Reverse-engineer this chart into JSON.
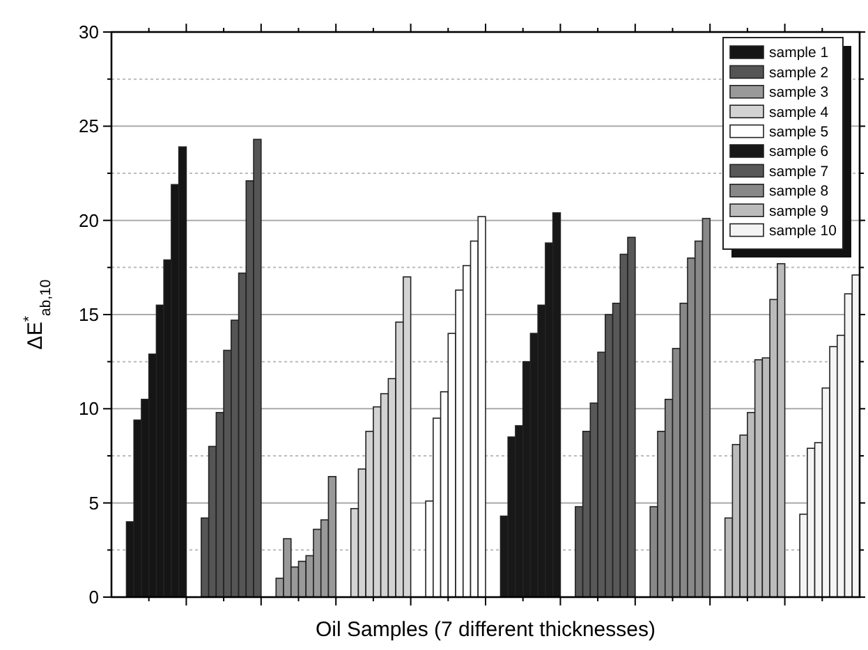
{
  "chart_data": {
    "type": "bar",
    "xlabel": "Oil Samples (7 different thicknesses)",
    "ylabel": "ΔE$^{*}$$_{ab,10}$",
    "categories": [
      null,
      null,
      null,
      null,
      null,
      null,
      null,
      null,
      null,
      null,
      null,
      null,
      null,
      null,
      null,
      null,
      null,
      null,
      null,
      null,
      null,
      null,
      null,
      null,
      null,
      null,
      null,
      null,
      null,
      null,
      null,
      null,
      null,
      null,
      null,
      null,
      null,
      null,
      null,
      null,
      null,
      null,
      null,
      null,
      null,
      null,
      null,
      null,
      null,
      null,
      null,
      null,
      null,
      null,
      null,
      null,
      null,
      null,
      null,
      null,
      null,
      null,
      null,
      null,
      null,
      null,
      null,
      null,
      null,
      null,
      null,
      null,
      null,
      null,
      null,
      null,
      null,
      null,
      null,
      null,
      null,
      null,
      null,
      null,
      null,
      null,
      null,
      null,
      null,
      null,
      null,
      null,
      null,
      null,
      null,
      null,
      null,
      null,
      null,
      null
    ],
    "series": [
      {
        "name": "sample 1",
        "color": "#151515",
        "values": [
          null,
          null,
          4.0,
          9.4,
          10.5,
          12.9,
          15.5,
          17.9,
          21.9,
          23.9,
          null,
          null,
          null,
          null,
          null,
          null,
          null,
          null,
          null,
          null,
          null,
          null,
          null,
          null,
          null,
          null,
          null,
          null,
          null,
          null,
          null,
          null,
          null,
          null,
          null,
          null,
          null,
          null,
          null,
          null,
          null,
          null,
          null,
          null,
          null,
          null,
          null,
          null,
          null,
          null,
          null,
          null,
          null,
          null,
          null,
          null,
          null,
          null,
          null,
          null,
          null,
          null,
          null,
          null,
          null,
          null,
          null,
          null,
          null,
          null,
          null,
          null,
          null,
          null,
          null,
          null,
          null,
          null,
          null,
          null,
          null,
          null,
          null,
          null,
          null,
          null,
          null,
          null,
          null,
          null,
          null,
          null,
          null,
          null,
          null,
          null,
          null,
          null,
          null,
          null
        ]
      },
      {
        "name": "sample 2",
        "color": "#555555",
        "values": [
          null,
          null,
          null,
          null,
          null,
          null,
          null,
          null,
          null,
          null,
          null,
          null,
          4.2,
          8.0,
          9.8,
          13.1,
          14.7,
          17.2,
          22.1,
          24.3,
          null,
          null,
          null,
          null,
          null,
          null,
          null,
          null,
          null,
          null,
          null,
          null,
          null,
          null,
          null,
          null,
          null,
          null,
          null,
          null,
          null,
          null,
          null,
          null,
          null,
          null,
          null,
          null,
          null,
          null,
          null,
          null,
          null,
          null,
          null,
          null,
          null,
          null,
          null,
          null,
          null,
          null,
          null,
          null,
          null,
          null,
          null,
          null,
          null,
          null,
          null,
          null,
          null,
          null,
          null,
          null,
          null,
          null,
          null,
          null,
          null,
          null,
          null,
          null,
          null,
          null,
          null,
          null,
          null,
          null,
          null,
          null,
          null,
          null,
          null,
          null,
          null,
          null,
          null,
          null
        ]
      },
      {
        "name": "sample 3",
        "color": "#999999",
        "values": [
          null,
          null,
          null,
          null,
          null,
          null,
          null,
          null,
          null,
          null,
          null,
          null,
          null,
          null,
          null,
          null,
          null,
          null,
          null,
          null,
          null,
          null,
          1.0,
          3.1,
          1.6,
          1.9,
          2.2,
          3.6,
          4.1,
          6.4,
          null,
          null,
          null,
          null,
          null,
          null,
          null,
          null,
          null,
          null,
          null,
          null,
          null,
          null,
          null,
          null,
          null,
          null,
          null,
          null,
          null,
          null,
          null,
          null,
          null,
          null,
          null,
          null,
          null,
          null,
          null,
          null,
          null,
          null,
          null,
          null,
          null,
          null,
          null,
          null,
          null,
          null,
          null,
          null,
          null,
          null,
          null,
          null,
          null,
          null,
          null,
          null,
          null,
          null,
          null,
          null,
          null,
          null,
          null,
          null,
          null,
          null,
          null,
          null,
          null,
          null,
          null,
          null,
          null,
          null
        ]
      },
      {
        "name": "sample 4",
        "color": "#d3d3d3",
        "values": [
          null,
          null,
          null,
          null,
          null,
          null,
          null,
          null,
          null,
          null,
          null,
          null,
          null,
          null,
          null,
          null,
          null,
          null,
          null,
          null,
          null,
          null,
          null,
          null,
          null,
          null,
          null,
          null,
          null,
          null,
          null,
          null,
          4.7,
          6.8,
          8.8,
          10.1,
          10.8,
          11.6,
          14.6,
          17.0,
          null,
          null,
          null,
          null,
          null,
          null,
          null,
          null,
          null,
          null,
          null,
          null,
          null,
          null,
          null,
          null,
          null,
          null,
          null,
          null,
          null,
          null,
          null,
          null,
          null,
          null,
          null,
          null,
          null,
          null,
          null,
          null,
          null,
          null,
          null,
          null,
          null,
          null,
          null,
          null,
          null,
          null,
          null,
          null,
          null,
          null,
          null,
          null,
          null,
          null,
          null,
          null,
          null,
          null,
          null,
          null,
          null,
          null,
          null,
          null
        ]
      },
      {
        "name": "sample 5",
        "color": "#ffffff",
        "values": [
          null,
          null,
          null,
          null,
          null,
          null,
          null,
          null,
          null,
          null,
          null,
          null,
          null,
          null,
          null,
          null,
          null,
          null,
          null,
          null,
          null,
          null,
          null,
          null,
          null,
          null,
          null,
          null,
          null,
          null,
          null,
          null,
          null,
          null,
          null,
          null,
          null,
          null,
          null,
          null,
          null,
          null,
          5.1,
          9.5,
          10.9,
          14.0,
          16.3,
          17.6,
          18.9,
          20.2,
          null,
          null,
          null,
          null,
          null,
          null,
          null,
          null,
          null,
          null,
          null,
          null,
          null,
          null,
          null,
          null,
          null,
          null,
          null,
          null,
          null,
          null,
          null,
          null,
          null,
          null,
          null,
          null,
          null,
          null,
          null,
          null,
          null,
          null,
          null,
          null,
          null,
          null,
          null,
          null,
          null,
          null,
          null,
          null,
          null,
          null,
          null,
          null,
          null,
          null
        ]
      },
      {
        "name": "sample 6",
        "color": "#181818",
        "values": [
          null,
          null,
          null,
          null,
          null,
          null,
          null,
          null,
          null,
          null,
          null,
          null,
          null,
          null,
          null,
          null,
          null,
          null,
          null,
          null,
          null,
          null,
          null,
          null,
          null,
          null,
          null,
          null,
          null,
          null,
          null,
          null,
          null,
          null,
          null,
          null,
          null,
          null,
          null,
          null,
          null,
          null,
          null,
          null,
          null,
          null,
          null,
          null,
          null,
          null,
          null,
          null,
          4.3,
          8.5,
          9.1,
          12.5,
          14.0,
          15.5,
          18.8,
          20.4,
          null,
          null,
          null,
          null,
          null,
          null,
          null,
          null,
          null,
          null,
          null,
          null,
          null,
          null,
          null,
          null,
          null,
          null,
          null,
          null,
          null,
          null,
          null,
          null,
          null,
          null,
          null,
          null,
          null,
          null,
          null,
          null,
          null,
          null,
          null,
          null,
          null,
          null,
          null,
          null
        ]
      },
      {
        "name": "sample 7",
        "color": "#585858",
        "values": [
          null,
          null,
          null,
          null,
          null,
          null,
          null,
          null,
          null,
          null,
          null,
          null,
          null,
          null,
          null,
          null,
          null,
          null,
          null,
          null,
          null,
          null,
          null,
          null,
          null,
          null,
          null,
          null,
          null,
          null,
          null,
          null,
          null,
          null,
          null,
          null,
          null,
          null,
          null,
          null,
          null,
          null,
          null,
          null,
          null,
          null,
          null,
          null,
          null,
          null,
          null,
          null,
          null,
          null,
          null,
          null,
          null,
          null,
          null,
          null,
          null,
          null,
          4.8,
          8.8,
          10.3,
          13.0,
          15.0,
          15.6,
          18.2,
          19.1,
          null,
          null,
          null,
          null,
          null,
          null,
          null,
          null,
          null,
          null,
          null,
          null,
          null,
          null,
          null,
          null,
          null,
          null,
          null,
          null,
          null,
          null,
          null,
          null,
          null,
          null,
          null,
          null,
          null,
          null
        ]
      },
      {
        "name": "sample 8",
        "color": "#888888",
        "values": [
          null,
          null,
          null,
          null,
          null,
          null,
          null,
          null,
          null,
          null,
          null,
          null,
          null,
          null,
          null,
          null,
          null,
          null,
          null,
          null,
          null,
          null,
          null,
          null,
          null,
          null,
          null,
          null,
          null,
          null,
          null,
          null,
          null,
          null,
          null,
          null,
          null,
          null,
          null,
          null,
          null,
          null,
          null,
          null,
          null,
          null,
          null,
          null,
          null,
          null,
          null,
          null,
          null,
          null,
          null,
          null,
          null,
          null,
          null,
          null,
          null,
          null,
          null,
          null,
          null,
          null,
          null,
          null,
          null,
          null,
          null,
          null,
          4.8,
          8.8,
          10.5,
          13.2,
          15.6,
          18.0,
          18.9,
          20.1,
          null,
          null,
          null,
          null,
          null,
          null,
          null,
          null,
          null,
          null,
          null,
          null,
          null,
          null,
          null,
          null,
          null,
          null,
          null,
          null
        ]
      },
      {
        "name": "sample 9",
        "color": "#bbbbbb",
        "values": [
          null,
          null,
          null,
          null,
          null,
          null,
          null,
          null,
          null,
          null,
          null,
          null,
          null,
          null,
          null,
          null,
          null,
          null,
          null,
          null,
          null,
          null,
          null,
          null,
          null,
          null,
          null,
          null,
          null,
          null,
          null,
          null,
          null,
          null,
          null,
          null,
          null,
          null,
          null,
          null,
          null,
          null,
          null,
          null,
          null,
          null,
          null,
          null,
          null,
          null,
          null,
          null,
          null,
          null,
          null,
          null,
          null,
          null,
          null,
          null,
          null,
          null,
          null,
          null,
          null,
          null,
          null,
          null,
          null,
          null,
          null,
          null,
          null,
          null,
          null,
          null,
          null,
          null,
          null,
          null,
          null,
          null,
          4.2,
          8.1,
          8.6,
          9.8,
          12.6,
          12.7,
          15.8,
          17.7,
          null,
          null,
          null,
          null,
          null,
          null,
          null,
          null,
          null,
          null
        ]
      },
      {
        "name": "sample 10",
        "color": "#f4f4f4",
        "values": [
          null,
          null,
          null,
          null,
          null,
          null,
          null,
          null,
          null,
          null,
          null,
          null,
          null,
          null,
          null,
          null,
          null,
          null,
          null,
          null,
          null,
          null,
          null,
          null,
          null,
          null,
          null,
          null,
          null,
          null,
          null,
          null,
          null,
          null,
          null,
          null,
          null,
          null,
          null,
          null,
          null,
          null,
          null,
          null,
          null,
          null,
          null,
          null,
          null,
          null,
          null,
          null,
          null,
          null,
          null,
          null,
          null,
          null,
          null,
          null,
          null,
          null,
          null,
          null,
          null,
          null,
          null,
          null,
          null,
          null,
          null,
          null,
          null,
          null,
          null,
          null,
          null,
          null,
          null,
          null,
          null,
          null,
          null,
          null,
          null,
          null,
          null,
          null,
          null,
          null,
          null,
          null,
          4.4,
          7.9,
          8.2,
          11.1,
          13.3,
          13.9,
          16.1,
          17.1
        ]
      }
    ],
    "ylim": [
      0,
      30
    ],
    "yticks": [
      0,
      {
        "value": 2.5,
        "label": null
      },
      5,
      {
        "value": 7.5,
        "label": null
      },
      10,
      {
        "value": 12.5,
        "label": null
      },
      15,
      {
        "value": 17.5,
        "label": null
      },
      20,
      {
        "value": 22.5,
        "label": null
      },
      25,
      {
        "value": 27.5,
        "label": null
      },
      30
    ],
    "grid": "y",
    "legend": "top right",
    "tick_labels": "y"
  }
}
